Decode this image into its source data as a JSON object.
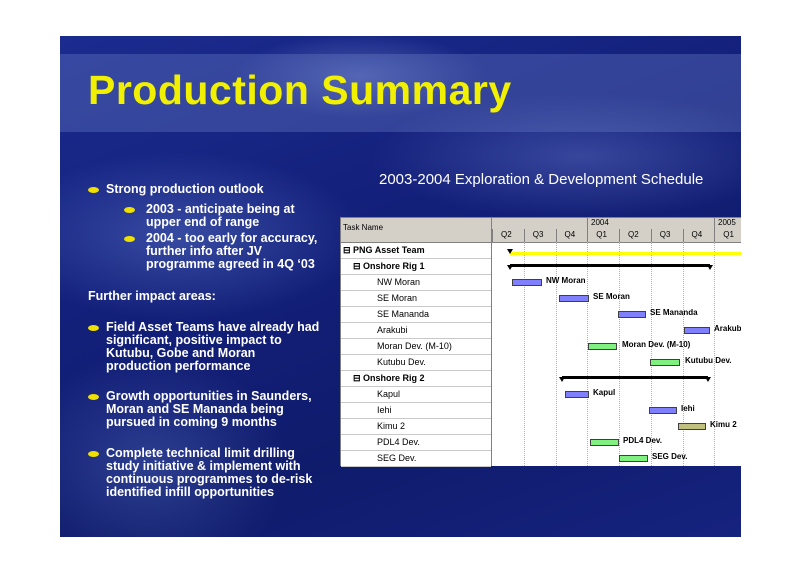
{
  "slide": {
    "title": "Production Summary",
    "schedule_title": "2003-2004 Exploration & Development Schedule"
  },
  "bullets": {
    "b1": "Strong production outlook",
    "b1a": [
      "2003 - anticipate being at",
      "upper end of range"
    ],
    "b1b": [
      "2004 - too early for accuracy,",
      "further info after JV",
      "programme agreed in 4Q ‘03"
    ],
    "further": "Further impact areas:",
    "b2": [
      "Field Asset Teams have already had",
      "significant, positive impact to",
      "Kutubu, Gobe and Moran",
      "production performance"
    ],
    "b3": [
      "Growth opportunities in Saunders,",
      "Moran and SE Mananda being",
      "pursued in coming 9 months"
    ],
    "b4": [
      "Complete technical limit drilling",
      "study initiative & implement with",
      "continuous programmes to de-risk",
      "identified infill opportunities"
    ]
  },
  "gantt": {
    "task_header": "Task Name",
    "years": [
      "2004",
      "2005"
    ],
    "quarters": [
      "Q2",
      "Q3",
      "Q4",
      "Q1",
      "Q2",
      "Q3",
      "Q4",
      "Q1"
    ],
    "tasks": [
      {
        "name": "PNG Asset Team",
        "level": 0,
        "summary": true
      },
      {
        "name": "Onshore Rig 1",
        "level": 1,
        "summary": true
      },
      {
        "name": "NW Moran",
        "level": 2,
        "label": "NW Moran"
      },
      {
        "name": "SE Moran",
        "level": 2,
        "label": "SE Moran"
      },
      {
        "name": "SE Mananda",
        "level": 2,
        "label": "SE Mananda"
      },
      {
        "name": "Arakubi",
        "level": 2,
        "label": "Arakubi"
      },
      {
        "name": "Moran Dev. (M-10)",
        "level": 2,
        "label": "Moran Dev. (M-10)"
      },
      {
        "name": "Kutubu Dev.",
        "level": 2,
        "label": "Kutubu Dev."
      },
      {
        "name": "Onshore Rig 2",
        "level": 1,
        "summary": true
      },
      {
        "name": "Kapul",
        "level": 2,
        "label": "Kapul"
      },
      {
        "name": "Iehi",
        "level": 2,
        "label": "Iehi"
      },
      {
        "name": "Kimu 2",
        "level": 2,
        "label": "Kimu 2"
      },
      {
        "name": "PDL4 Dev.",
        "level": 2,
        "label": "PDL4 Dev."
      },
      {
        "name": "SEG Dev.",
        "level": 2,
        "label": "SEG Dev."
      }
    ],
    "colors": {
      "blue_bar": "#8080ff",
      "green_bar": "#80f080",
      "khaki_bar": "#c0c080",
      "team_bar": "#ffff00",
      "title_yellow": "#f0f000"
    }
  }
}
